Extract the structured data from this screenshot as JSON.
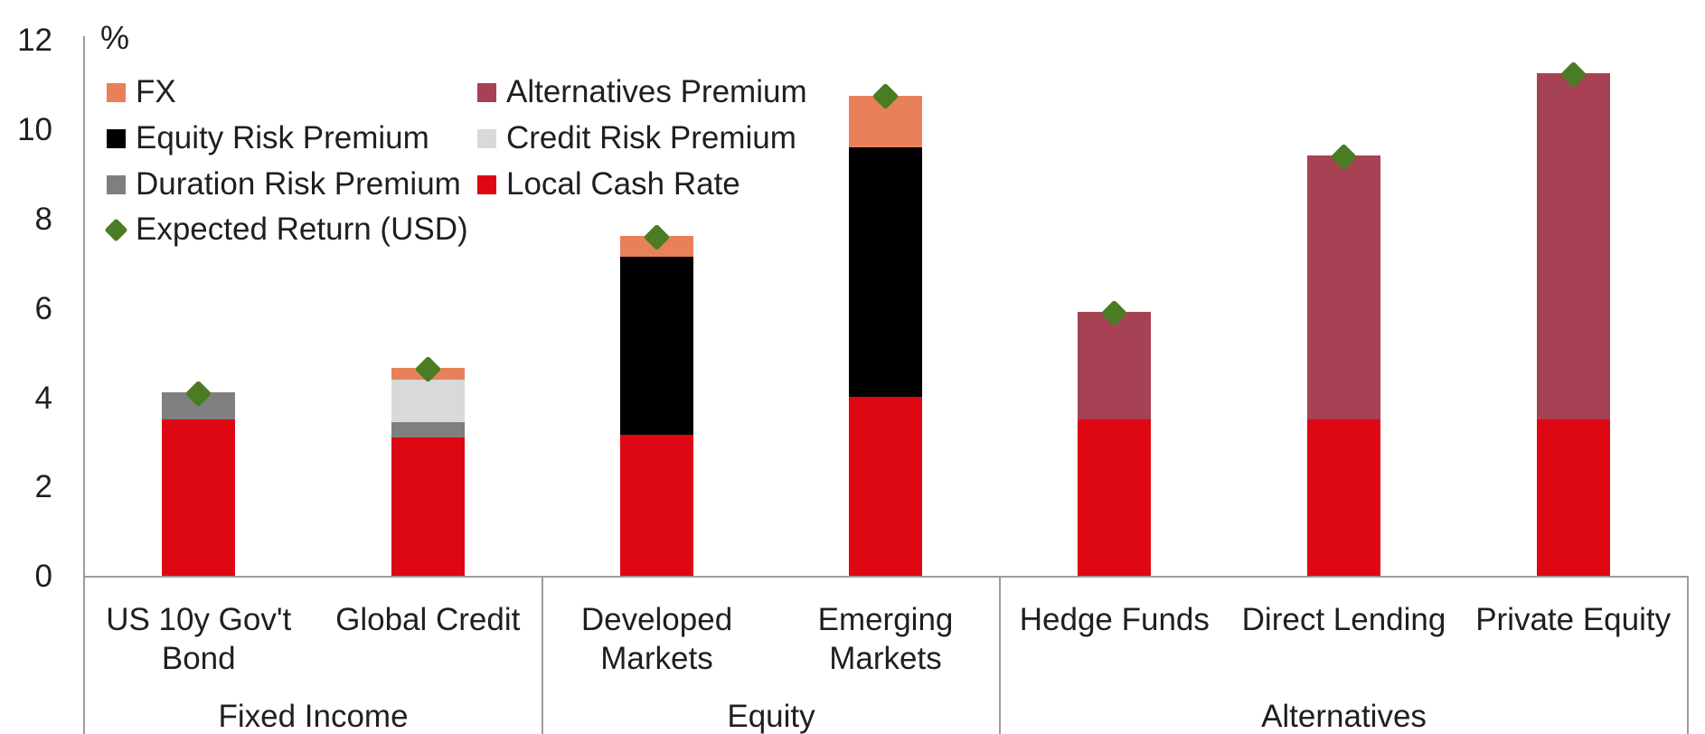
{
  "chart": {
    "percent_label": "%",
    "y_ticks": [
      "12",
      "10",
      "8",
      "6",
      "4",
      "2",
      "0"
    ],
    "legend": {
      "col1": [
        {
          "label": "FX",
          "series": "fx"
        },
        {
          "label": "Equity Risk Premium",
          "series": "equity_risk_premium"
        },
        {
          "label": "Duration Risk Premium",
          "series": "duration_risk_premium"
        },
        {
          "label": "Expected Return (USD)",
          "series": "expected_return_usd"
        }
      ],
      "col2": [
        {
          "label": "Alternatives Premium",
          "series": "alternatives_premium"
        },
        {
          "label": "Credit Risk Premium",
          "series": "credit_risk_premium"
        },
        {
          "label": "Local Cash Rate",
          "series": "local_cash_rate"
        }
      ]
    }
  },
  "chart_data": {
    "type": "bar",
    "stacked": true,
    "title": "",
    "xlabel": "",
    "ylabel": "%",
    "ylim": [
      0,
      12
    ],
    "y_tick_step": 2,
    "grid": false,
    "legend_position": "top-left",
    "colors": {
      "local_cash_rate": "#de0714",
      "duration_risk_premium": "#7f7f7f",
      "credit_risk_premium": "#d9d9d9",
      "equity_risk_premium": "#000000",
      "alternatives_premium": "#a64253",
      "fx": "#e8815a",
      "expected_return_usd": "#4b7c24",
      "axis_line": "#9c9c9c",
      "text": "#1f1f1f"
    },
    "stack_order": [
      "local_cash_rate",
      "duration_risk_premium",
      "credit_risk_premium",
      "equity_risk_premium",
      "alternatives_premium",
      "fx"
    ],
    "series_names": {
      "local_cash_rate": "Local Cash Rate",
      "duration_risk_premium": "Duration Risk Premium",
      "credit_risk_premium": "Credit Risk Premium",
      "equity_risk_premium": "Equity Risk Premium",
      "alternatives_premium": "Alternatives Premium",
      "fx": "FX",
      "expected_return_usd": "Expected Return (USD)"
    },
    "marker_series": "expected_return_usd",
    "groups": [
      {
        "label": "Fixed Income",
        "categories": [
          {
            "label": "US 10y Gov't Bond",
            "label_lines": [
              "US 10y Gov't",
              "Bond"
            ],
            "segments": {
              "local_cash_rate": 3.5,
              "duration_risk_premium": 0.6
            },
            "expected_return_usd": 4.1
          },
          {
            "label": "Global Credit",
            "label_lines": [
              "Global Credit"
            ],
            "segments": {
              "local_cash_rate": 3.1,
              "duration_risk_premium": 0.35,
              "credit_risk_premium": 0.95,
              "fx": 0.25
            },
            "expected_return_usd": 4.65
          }
        ]
      },
      {
        "label": "Equity",
        "categories": [
          {
            "label": "Developed Markets",
            "label_lines": [
              "Developed",
              "Markets"
            ],
            "segments": {
              "local_cash_rate": 3.15,
              "equity_risk_premium": 4.0,
              "fx": 0.45
            },
            "expected_return_usd": 7.6
          },
          {
            "label": "Emerging Markets",
            "label_lines": [
              "Emerging",
              "Markets"
            ],
            "segments": {
              "local_cash_rate": 4.0,
              "equity_risk_premium": 5.6,
              "fx": 1.15
            },
            "expected_return_usd": 10.75
          }
        ]
      },
      {
        "label": "Alternatives",
        "categories": [
          {
            "label": "Hedge Funds",
            "label_lines": [
              "Hedge Funds"
            ],
            "segments": {
              "local_cash_rate": 3.5,
              "alternatives_premium": 2.4
            },
            "expected_return_usd": 5.9
          },
          {
            "label": "Direct Lending",
            "label_lines": [
              "Direct Lending"
            ],
            "segments": {
              "local_cash_rate": 3.5,
              "alternatives_premium": 5.9
            },
            "expected_return_usd": 9.4
          },
          {
            "label": "Private Equity",
            "label_lines": [
              "Private Equity"
            ],
            "segments": {
              "local_cash_rate": 3.5,
              "alternatives_premium": 7.75
            },
            "expected_return_usd": 11.25
          }
        ]
      }
    ]
  }
}
